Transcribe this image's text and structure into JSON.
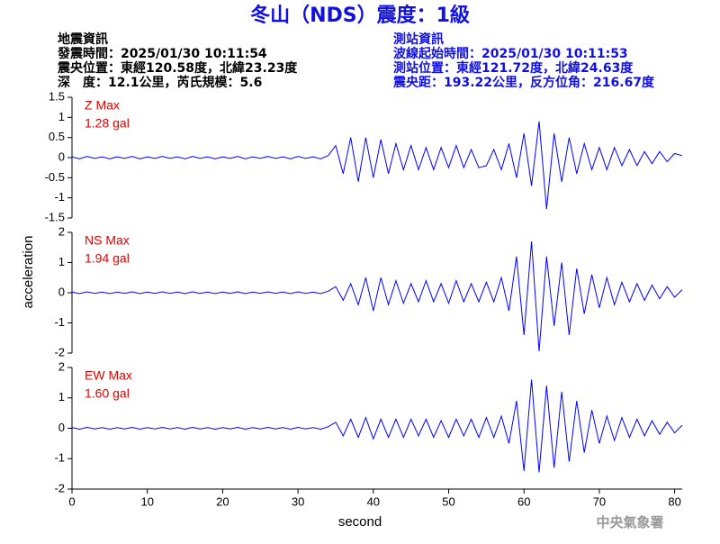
{
  "header": {
    "title": "冬山（NDS）震度：1級",
    "left": [
      "地震資訊",
      "發震時間：2025/01/30 10:11:54",
      "震央位置：東經120.58度，北緯23.23度",
      "深　度：12.1公里，芮氏規模：5.6"
    ],
    "right": [
      "測站資訊",
      "波線起始時間：2025/01/30 10:11:53",
      "測站位置：東經121.72度，北緯24.63度",
      "震央距：193.22公里，反方位角：216.67度"
    ]
  },
  "footer": "中央氣象署",
  "chart_data": [
    {
      "type": "line",
      "label": "Z Max",
      "annotation": "1.28 gal",
      "label_color": "#e00000",
      "color": "#0000ff",
      "x": [
        0,
        1,
        2,
        3,
        4,
        5,
        6,
        7,
        8,
        9,
        10,
        11,
        12,
        13,
        14,
        15,
        16,
        17,
        18,
        19,
        20,
        21,
        22,
        23,
        24,
        25,
        26,
        27,
        28,
        29,
        30,
        31,
        32,
        33,
        34,
        35,
        36,
        37,
        38,
        39,
        40,
        41,
        42,
        43,
        44,
        45,
        46,
        47,
        48,
        49,
        50,
        51,
        52,
        53,
        54,
        55,
        56,
        57,
        58,
        59,
        60,
        61,
        62,
        63,
        64,
        65,
        66,
        67,
        68,
        69,
        70,
        71,
        72,
        73,
        74,
        75,
        76,
        77,
        78,
        79,
        80,
        81
      ],
      "values": [
        0.02,
        -0.03,
        0.03,
        -0.02,
        0.02,
        -0.03,
        0.02,
        -0.02,
        0.03,
        -0.03,
        0.02,
        -0.02,
        0.03,
        -0.02,
        0.02,
        -0.03,
        0.03,
        -0.02,
        0.02,
        -0.03,
        0.02,
        -0.02,
        0.03,
        -0.03,
        0.02,
        -0.02,
        0.03,
        -0.02,
        0.02,
        -0.03,
        0.03,
        -0.02,
        0.02,
        -0.03,
        0.05,
        0.3,
        -0.4,
        0.5,
        -0.6,
        0.5,
        -0.5,
        0.45,
        -0.4,
        0.35,
        -0.3,
        0.3,
        -0.3,
        0.25,
        -0.3,
        0.25,
        -0.25,
        0.3,
        -0.25,
        0.2,
        -0.25,
        -0.2,
        0.2,
        -0.3,
        0.35,
        -0.5,
        0.6,
        -0.7,
        0.9,
        -1.28,
        0.6,
        -0.6,
        0.5,
        -0.4,
        0.35,
        -0.3,
        0.25,
        -0.3,
        0.25,
        -0.2,
        0.2,
        -0.2,
        0.15,
        -0.15,
        0.15,
        -0.1,
        0.1,
        0.05
      ],
      "xlim": [
        0,
        81
      ],
      "ylim": [
        -1.5,
        1.5
      ],
      "yticks": [
        -1.5,
        -1,
        -0.5,
        0,
        0.5,
        1,
        1.5
      ]
    },
    {
      "type": "line",
      "label": "NS Max",
      "annotation": "1.94 gal",
      "label_color": "#e00000",
      "color": "#0000ff",
      "ylabel": "acceleration",
      "x": [
        0,
        1,
        2,
        3,
        4,
        5,
        6,
        7,
        8,
        9,
        10,
        11,
        12,
        13,
        14,
        15,
        16,
        17,
        18,
        19,
        20,
        21,
        22,
        23,
        24,
        25,
        26,
        27,
        28,
        29,
        30,
        31,
        32,
        33,
        34,
        35,
        36,
        37,
        38,
        39,
        40,
        41,
        42,
        43,
        44,
        45,
        46,
        47,
        48,
        49,
        50,
        51,
        52,
        53,
        54,
        55,
        56,
        57,
        58,
        59,
        60,
        61,
        62,
        63,
        64,
        65,
        66,
        67,
        68,
        69,
        70,
        71,
        72,
        73,
        74,
        75,
        76,
        77,
        78,
        79,
        80,
        81
      ],
      "values": [
        0.02,
        -0.03,
        0.03,
        -0.02,
        0.02,
        -0.03,
        0.02,
        -0.02,
        0.03,
        -0.03,
        0.02,
        -0.02,
        0.03,
        -0.02,
        0.02,
        -0.03,
        0.03,
        -0.02,
        0.02,
        -0.03,
        0.02,
        -0.02,
        0.03,
        -0.03,
        0.02,
        -0.02,
        0.03,
        -0.02,
        0.02,
        -0.03,
        0.03,
        -0.02,
        0.02,
        -0.03,
        0.05,
        0.2,
        -0.25,
        0.3,
        -0.4,
        0.5,
        -0.6,
        0.5,
        -0.4,
        0.4,
        -0.35,
        0.3,
        -0.3,
        0.4,
        -0.3,
        0.3,
        -0.35,
        0.4,
        -0.3,
        0.3,
        -0.3,
        0.35,
        -0.3,
        0.5,
        -0.6,
        1.2,
        -1.4,
        1.7,
        -1.94,
        1.2,
        -1.1,
        1.0,
        -1.4,
        0.8,
        -0.7,
        0.6,
        -0.5,
        0.5,
        -0.4,
        0.35,
        -0.3,
        0.3,
        -0.25,
        0.25,
        -0.2,
        0.2,
        -0.15,
        0.1
      ],
      "xlim": [
        0,
        81
      ],
      "ylim": [
        -2,
        2
      ],
      "yticks": [
        -2,
        -1,
        0,
        1,
        2
      ]
    },
    {
      "type": "line",
      "label": "EW Max",
      "annotation": "1.60 gal",
      "label_color": "#e00000",
      "color": "#0000ff",
      "xlabel": "second",
      "x": [
        0,
        1,
        2,
        3,
        4,
        5,
        6,
        7,
        8,
        9,
        10,
        11,
        12,
        13,
        14,
        15,
        16,
        17,
        18,
        19,
        20,
        21,
        22,
        23,
        24,
        25,
        26,
        27,
        28,
        29,
        30,
        31,
        32,
        33,
        34,
        35,
        36,
        37,
        38,
        39,
        40,
        41,
        42,
        43,
        44,
        45,
        46,
        47,
        48,
        49,
        50,
        51,
        52,
        53,
        54,
        55,
        56,
        57,
        58,
        59,
        60,
        61,
        62,
        63,
        64,
        65,
        66,
        67,
        68,
        69,
        70,
        71,
        72,
        73,
        74,
        75,
        76,
        77,
        78,
        79,
        80,
        81
      ],
      "values": [
        0.02,
        -0.03,
        0.03,
        -0.02,
        0.02,
        -0.03,
        0.02,
        -0.02,
        0.03,
        -0.03,
        0.02,
        -0.02,
        0.03,
        -0.02,
        0.02,
        -0.03,
        0.03,
        -0.02,
        0.02,
        -0.03,
        0.02,
        -0.02,
        0.03,
        -0.03,
        0.02,
        -0.02,
        0.03,
        -0.02,
        0.02,
        -0.03,
        0.03,
        -0.02,
        0.02,
        -0.03,
        0.05,
        0.2,
        -0.25,
        0.3,
        -0.3,
        0.35,
        -0.35,
        0.3,
        -0.3,
        0.3,
        -0.3,
        0.3,
        -0.25,
        0.3,
        -0.3,
        0.25,
        -0.3,
        0.3,
        -0.25,
        0.3,
        -0.3,
        0.35,
        -0.3,
        0.4,
        -0.5,
        0.9,
        -1.4,
        1.6,
        -1.45,
        1.4,
        -1.3,
        1.2,
        -1.1,
        0.9,
        -0.8,
        0.6,
        -0.5,
        0.4,
        -0.4,
        0.35,
        -0.3,
        0.3,
        -0.25,
        0.25,
        -0.2,
        0.2,
        -0.15,
        0.1
      ],
      "xlim": [
        0,
        81
      ],
      "ylim": [
        -2,
        2
      ],
      "yticks": [
        -2,
        -1,
        0,
        1,
        2
      ],
      "xticks": [
        0,
        10,
        20,
        30,
        40,
        50,
        60,
        70,
        80
      ]
    }
  ]
}
